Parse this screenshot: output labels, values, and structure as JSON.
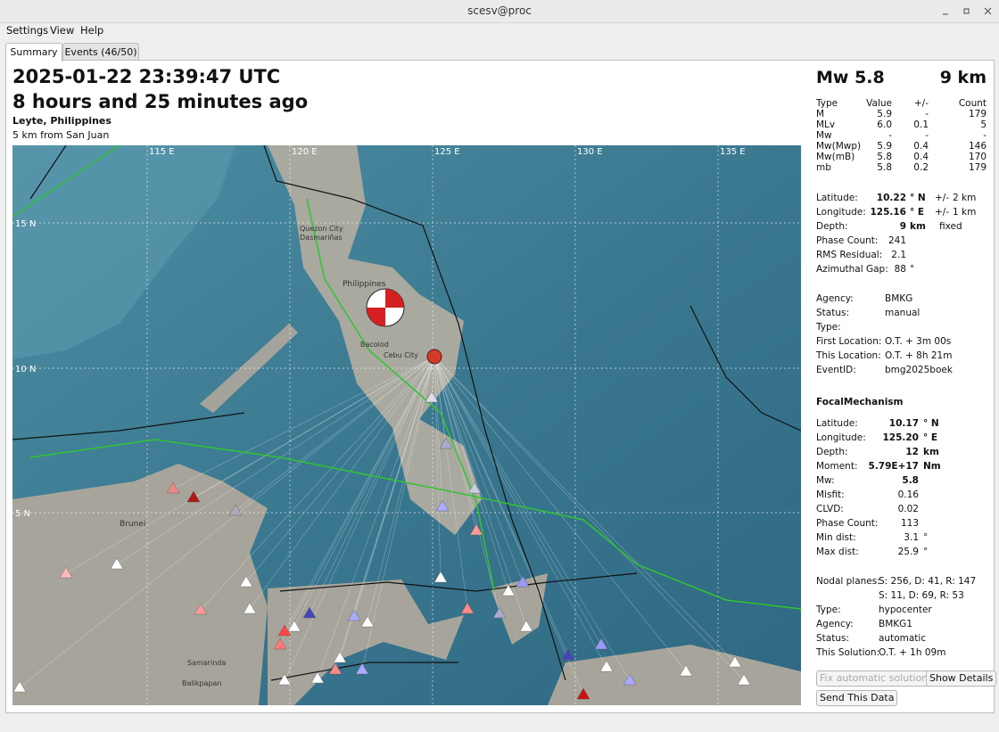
{
  "window": {
    "title": "scesv@proc"
  },
  "menu": [
    "Settings",
    "View",
    "Help"
  ],
  "tabs": [
    "Summary",
    "Events (46/50)"
  ],
  "summary": {
    "time": "2025-01-22 23:39:47 UTC",
    "ago": "8 hours and 25 minutes ago",
    "region": "Leyte, Philippines",
    "nearest": "5 km from San Juan"
  },
  "map": {
    "lon_labels": [
      "115 E",
      "120 E",
      "125 E",
      "130 E",
      "135 E"
    ],
    "lat_labels": [
      "15 N",
      "10 N",
      "5 N"
    ],
    "places": [
      "Quezon City",
      "Dasmariñas",
      "Philippines",
      "Bacolod",
      "Cebu City",
      "Brunei",
      "Samarinda",
      "Balikpapan"
    ]
  },
  "magnitude": {
    "label": "Mw 5.8",
    "depth": "9 km"
  },
  "magnitude_table": {
    "header": [
      "Type",
      "Value",
      "+/-",
      "Count"
    ],
    "rows": [
      [
        "M",
        "5.9",
        "-",
        "179"
      ],
      [
        "MLv",
        "6.0",
        "0.1",
        "5"
      ],
      [
        "Mw",
        "-",
        "-",
        "-"
      ],
      [
        "Mw(Mwp)",
        "5.9",
        "0.4",
        "146"
      ],
      [
        "Mw(mB)",
        "5.8",
        "0.4",
        "170"
      ],
      [
        "mb",
        "5.8",
        "0.2",
        "179"
      ]
    ]
  },
  "origin": [
    {
      "label": "Latitude:",
      "value": "10.22",
      "unit": "° N",
      "pm": "+/-",
      "error": "2 km"
    },
    {
      "label": "Longitude:",
      "value": "125.16",
      "unit": "° E",
      "pm": "+/-",
      "error": "1 km"
    },
    {
      "label": "Depth:",
      "value": "9",
      "unit": "km",
      "note": "fixed"
    },
    {
      "label": "Phase Count:",
      "value": "241"
    },
    {
      "label": "RMS Residual:",
      "value": "2.1"
    },
    {
      "label": "Azimuthal Gap:",
      "value": "88",
      "unit": "°"
    }
  ],
  "event_info": [
    {
      "label": "Agency:",
      "value": "BMKG"
    },
    {
      "label": "Status:",
      "value": "manual"
    },
    {
      "label": "Type:"
    },
    {
      "label": "First Location:",
      "value": "O.T. + 3m 00s"
    },
    {
      "label": "This Location:",
      "value": "O.T. + 8h 21m"
    },
    {
      "label": "EventID:",
      "value": "bmg2025boek"
    }
  ],
  "focal_mechanism": {
    "title": "FocalMechanism",
    "params": [
      {
        "label": "Latitude:",
        "value": "10.17",
        "unit": "° N"
      },
      {
        "label": "Longitude:",
        "value": "125.20",
        "unit": "° E"
      },
      {
        "label": "Depth:",
        "value": "12",
        "unit": "km"
      },
      {
        "label": "Moment:",
        "value": "5.79E+17",
        "unit": "Nm"
      },
      {
        "label": "Mw:",
        "value": "5.8"
      },
      {
        "label": "Misfit:",
        "value": "0.16"
      },
      {
        "label": "CLVD:",
        "value": "0.02"
      },
      {
        "label": "Phase Count:",
        "value": "113"
      },
      {
        "label": "Min dist:",
        "value": "3.1",
        "unit": "°"
      },
      {
        "label": "Max dist:",
        "value": "25.9",
        "unit": "°"
      }
    ],
    "nodal_planes": {
      "label": "Nodal planes:",
      "values": [
        "S: 256, D: 41, R: 147",
        "S: 11, D: 69, R: 53"
      ]
    },
    "details": [
      {
        "label": "Type:",
        "value": "hypocenter"
      },
      {
        "label": "Agency:",
        "value": "BMKG1"
      },
      {
        "label": "Status:",
        "value": "automatic"
      },
      {
        "label": "This Solution:",
        "value": "O.T. + 1h 09m"
      }
    ]
  },
  "buttons": {
    "fix": "Fix automatic solutions",
    "details": "Show Details",
    "send": "Send This Data"
  }
}
